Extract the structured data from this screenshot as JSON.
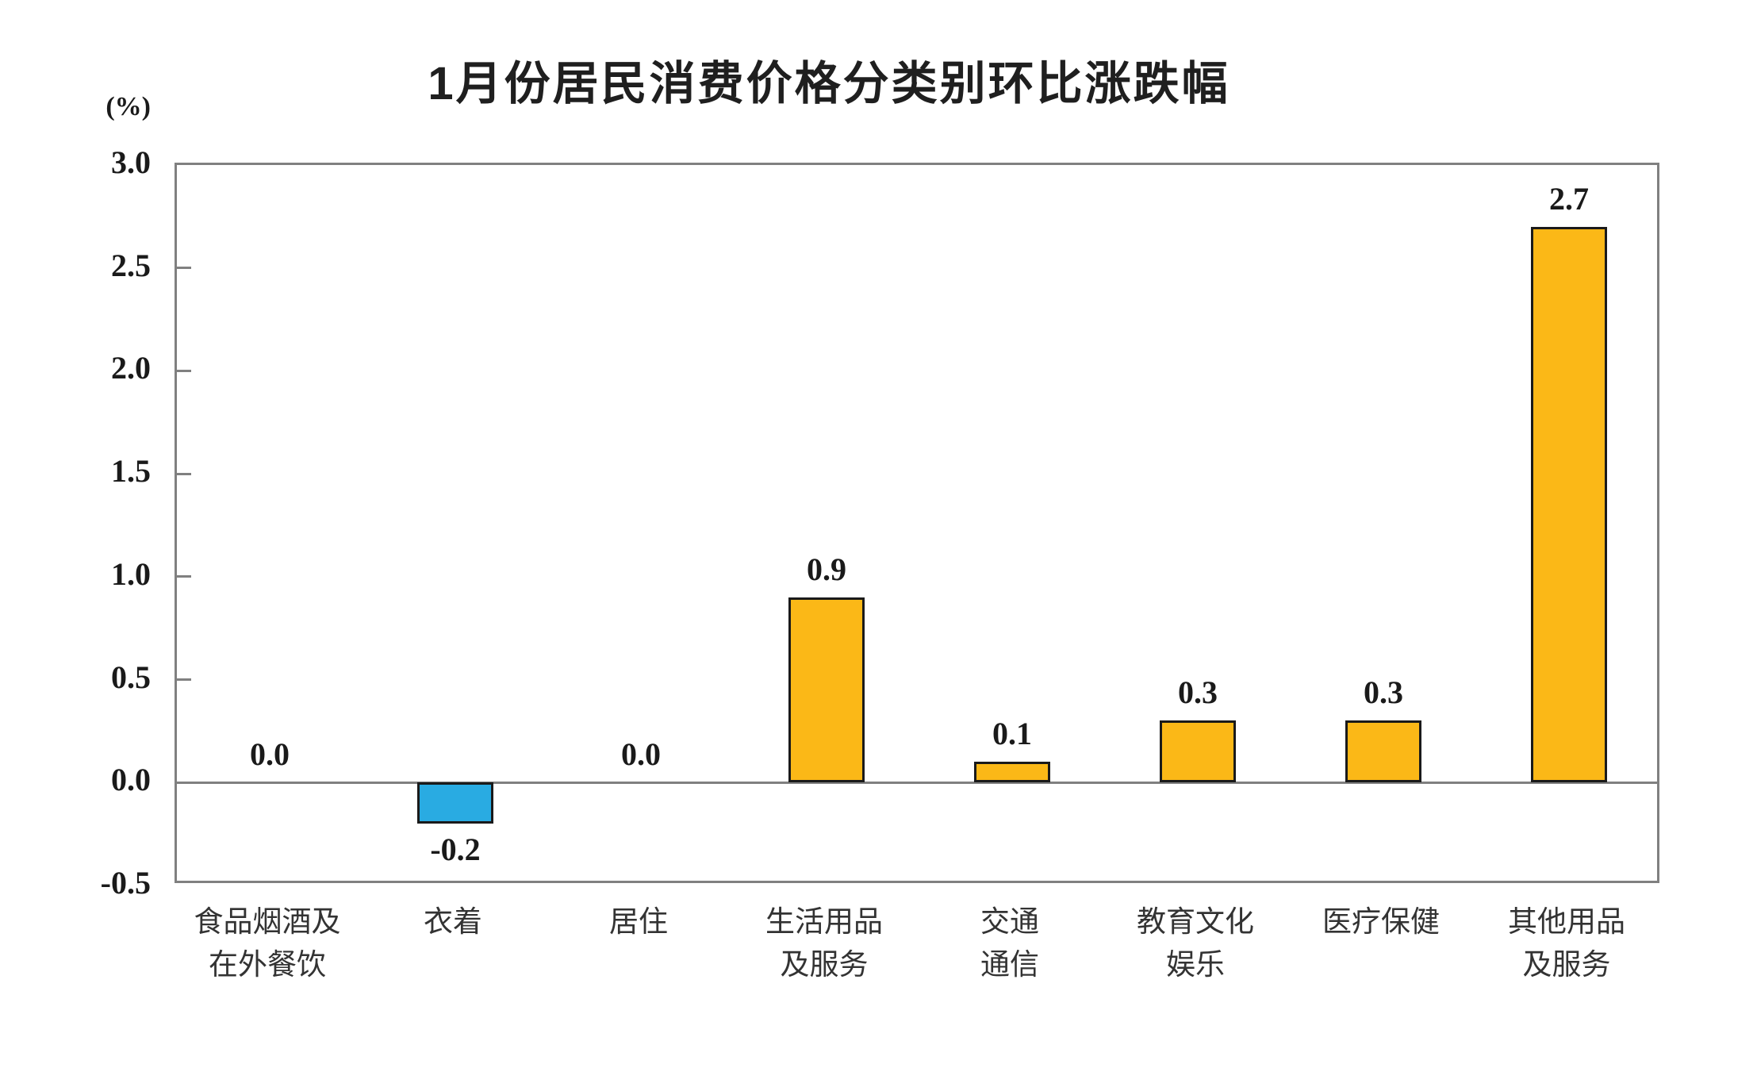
{
  "chart_data": {
    "type": "bar",
    "title": "1月份居民消费价格分类别环比涨跌幅",
    "unit_label": "(%)",
    "categories": [
      "食品烟酒及\n在外餐饮",
      "衣着",
      "居住",
      "生活用品\n及服务",
      "交通\n通信",
      "教育文化\n娱乐",
      "医疗保健",
      "其他用品\n及服务"
    ],
    "values": [
      0.0,
      -0.2,
      0.0,
      0.9,
      0.1,
      0.3,
      0.3,
      2.7
    ],
    "value_labels": [
      "0.0",
      "-0.2",
      "0.0",
      "0.9",
      "0.1",
      "0.3",
      "0.3",
      "2.7"
    ],
    "xlabel": "",
    "ylabel": "(%)",
    "ylim": [
      -0.5,
      3.0
    ],
    "ytick_step": 0.5,
    "yticks": [
      "3.0",
      "2.5",
      "2.0",
      "1.5",
      "1.0",
      "0.5",
      "0.0",
      "-0.5"
    ],
    "grid": false,
    "legend_position": "none",
    "colors": {
      "positive_bar": "#FBB817",
      "negative_bar": "#29ABE2",
      "bar_outline": "#1a1a1a",
      "frame": "#808080",
      "text": "#1a1a1a"
    }
  }
}
